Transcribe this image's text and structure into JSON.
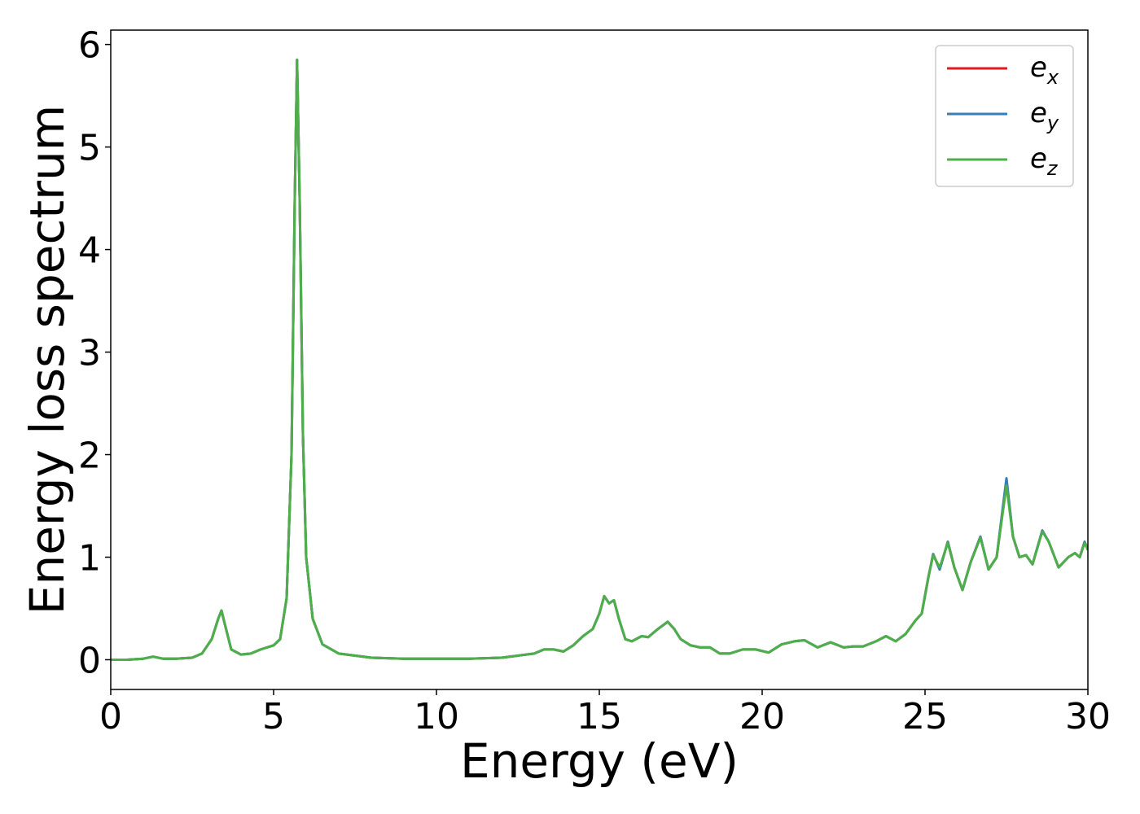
{
  "chart_data": {
    "type": "line",
    "x_label": "Energy (eV)",
    "y_label": "Energy loss spectrum",
    "x": [
      0,
      0.5,
      1,
      1.3,
      1.6,
      2,
      2.5,
      2.8,
      3.1,
      3.3,
      3.4,
      3.5,
      3.7,
      4,
      4.3,
      4.6,
      5,
      5.2,
      5.4,
      5.55,
      5.65,
      5.72,
      5.8,
      5.9,
      6,
      6.2,
      6.5,
      7,
      8,
      9,
      10,
      11,
      12,
      12.5,
      13,
      13.3,
      13.6,
      13.9,
      14.2,
      14.5,
      14.8,
      15,
      15.15,
      15.3,
      15.45,
      15.6,
      15.8,
      16,
      16.3,
      16.5,
      16.8,
      17.1,
      17.3,
      17.5,
      17.8,
      18.1,
      18.4,
      18.7,
      19,
      19.4,
      19.8,
      20.2,
      20.6,
      21,
      21.3,
      21.7,
      22.1,
      22.5,
      22.8,
      23.1,
      23.5,
      23.8,
      24.1,
      24.4,
      24.7,
      24.9,
      25.1,
      25.25,
      25.45,
      25.7,
      25.9,
      26.15,
      26.4,
      26.7,
      26.95,
      27.2,
      27.5,
      27.7,
      27.9,
      28.1,
      28.3,
      28.6,
      28.8,
      29.1,
      29.4,
      29.6,
      29.75,
      29.9,
      30
    ],
    "series": [
      {
        "name": "ex",
        "color": "#e41a1c",
        "values": [
          0,
          0,
          0.01,
          0.03,
          0.01,
          0.01,
          0.02,
          0.06,
          0.2,
          0.4,
          0.48,
          0.35,
          0.1,
          0.05,
          0.06,
          0.1,
          0.14,
          0.2,
          0.6,
          2.0,
          4.5,
          5.85,
          4.5,
          2.2,
          1.0,
          0.4,
          0.15,
          0.06,
          0.02,
          0.01,
          0.01,
          0.01,
          0.02,
          0.04,
          0.06,
          0.1,
          0.1,
          0.08,
          0.14,
          0.23,
          0.3,
          0.45,
          0.62,
          0.55,
          0.58,
          0.4,
          0.2,
          0.18,
          0.23,
          0.22,
          0.3,
          0.37,
          0.3,
          0.2,
          0.14,
          0.12,
          0.12,
          0.06,
          0.06,
          0.1,
          0.1,
          0.07,
          0.15,
          0.18,
          0.19,
          0.12,
          0.17,
          0.12,
          0.13,
          0.13,
          0.18,
          0.23,
          0.18,
          0.25,
          0.38,
          0.45,
          0.8,
          1.03,
          0.88,
          1.15,
          0.9,
          0.68,
          0.95,
          1.2,
          0.88,
          1.0,
          1.75,
          1.2,
          1.0,
          1.02,
          0.93,
          1.26,
          1.15,
          0.9,
          1.0,
          1.04,
          1.0,
          1.15,
          1.07
        ]
      },
      {
        "name": "ey",
        "color": "#377eb8",
        "values": [
          0,
          0,
          0.01,
          0.03,
          0.01,
          0.01,
          0.02,
          0.06,
          0.2,
          0.4,
          0.48,
          0.35,
          0.1,
          0.05,
          0.06,
          0.1,
          0.14,
          0.2,
          0.6,
          2.0,
          4.5,
          5.85,
          4.5,
          2.2,
          1.0,
          0.4,
          0.15,
          0.06,
          0.02,
          0.01,
          0.01,
          0.01,
          0.02,
          0.04,
          0.06,
          0.1,
          0.1,
          0.08,
          0.14,
          0.23,
          0.3,
          0.45,
          0.62,
          0.55,
          0.58,
          0.4,
          0.2,
          0.18,
          0.23,
          0.22,
          0.3,
          0.37,
          0.3,
          0.2,
          0.14,
          0.12,
          0.12,
          0.06,
          0.06,
          0.1,
          0.1,
          0.07,
          0.15,
          0.18,
          0.19,
          0.12,
          0.17,
          0.12,
          0.13,
          0.13,
          0.18,
          0.23,
          0.18,
          0.25,
          0.38,
          0.45,
          0.8,
          1.03,
          0.88,
          1.15,
          0.9,
          0.68,
          0.95,
          1.2,
          0.88,
          1.0,
          1.77,
          1.2,
          1.0,
          1.02,
          0.93,
          1.26,
          1.15,
          0.9,
          1.0,
          1.04,
          1.0,
          1.15,
          1.07
        ]
      },
      {
        "name": "ez",
        "color": "#4daf4a",
        "values": [
          0,
          0,
          0.01,
          0.03,
          0.01,
          0.01,
          0.02,
          0.06,
          0.2,
          0.4,
          0.48,
          0.35,
          0.1,
          0.05,
          0.06,
          0.1,
          0.14,
          0.2,
          0.6,
          2.0,
          4.5,
          5.85,
          4.5,
          2.2,
          1.0,
          0.4,
          0.15,
          0.06,
          0.02,
          0.01,
          0.01,
          0.01,
          0.02,
          0.04,
          0.06,
          0.1,
          0.1,
          0.08,
          0.14,
          0.23,
          0.3,
          0.45,
          0.62,
          0.55,
          0.58,
          0.4,
          0.2,
          0.18,
          0.23,
          0.22,
          0.3,
          0.37,
          0.3,
          0.2,
          0.14,
          0.12,
          0.12,
          0.06,
          0.06,
          0.1,
          0.1,
          0.07,
          0.15,
          0.18,
          0.19,
          0.12,
          0.17,
          0.12,
          0.13,
          0.13,
          0.18,
          0.23,
          0.18,
          0.25,
          0.38,
          0.45,
          0.8,
          1.02,
          0.9,
          1.14,
          0.9,
          0.68,
          0.95,
          1.19,
          0.88,
          1.0,
          1.7,
          1.2,
          1.0,
          1.02,
          0.93,
          1.25,
          1.15,
          0.9,
          1.0,
          1.04,
          1.0,
          1.14,
          1.07
        ]
      }
    ],
    "xlim": [
      0,
      30
    ],
    "xticks": [
      0,
      5,
      10,
      15,
      20,
      25,
      30
    ],
    "ylim": [
      -0.29,
      6.14
    ],
    "yticks": [
      0,
      1,
      2,
      3,
      4,
      5,
      6
    ],
    "grid": false,
    "legend": "upper right"
  }
}
